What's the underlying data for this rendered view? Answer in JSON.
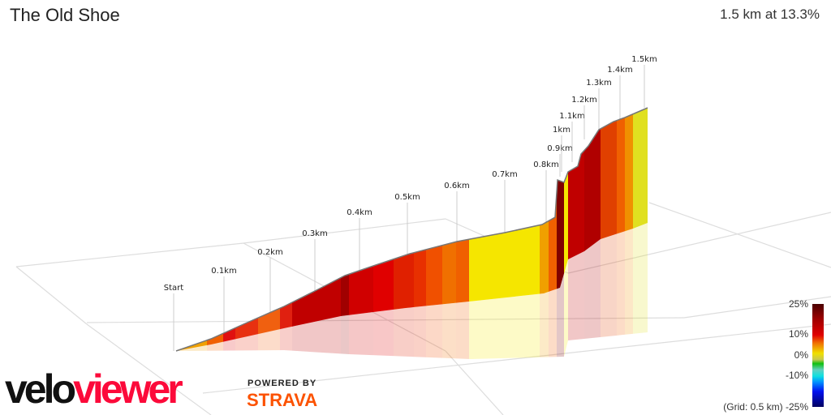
{
  "header": {
    "title": "The Old Shoe",
    "summary": "1.5 km at 13.3%"
  },
  "chart_data": {
    "type": "area",
    "title": "The Old Shoe",
    "subtitle": "1.5 km at 13.3%",
    "distance_markers": [
      "Start",
      "0.1km",
      "0.2km",
      "0.3km",
      "0.4km",
      "0.5km",
      "0.6km",
      "0.7km",
      "0.8km",
      "0.9km",
      "1km",
      "1.1km",
      "1.2km",
      "1.3km",
      "1.4km",
      "1.5km"
    ],
    "segment_colors": [
      "#f0a000",
      "#f06000",
      "#e01010",
      "#e83010",
      "#f06010",
      "#e02010",
      "#c00000",
      "#a00000",
      "#d00000",
      "#e00000",
      "#e02000",
      "#e83000",
      "#f05000",
      "#f07000",
      "#f06000",
      "#f5e600",
      "#f0a000",
      "#f06000",
      "#800000",
      "#f5e600",
      "#c00000",
      "#b00000",
      "#e04000",
      "#f06000",
      "#f09000",
      "#e0e020"
    ],
    "colorscale": {
      "ticks": [
        "25%",
        "10%",
        "0%",
        "-10%",
        "-25%"
      ],
      "range": [
        -25,
        25
      ]
    },
    "grid_label": "(Grid: 0.5 km)"
  },
  "branding": {
    "logo_part1": "velo",
    "logo_part2": "viewer",
    "powered_by": "POWERED BY",
    "strava": "STRAVA"
  }
}
